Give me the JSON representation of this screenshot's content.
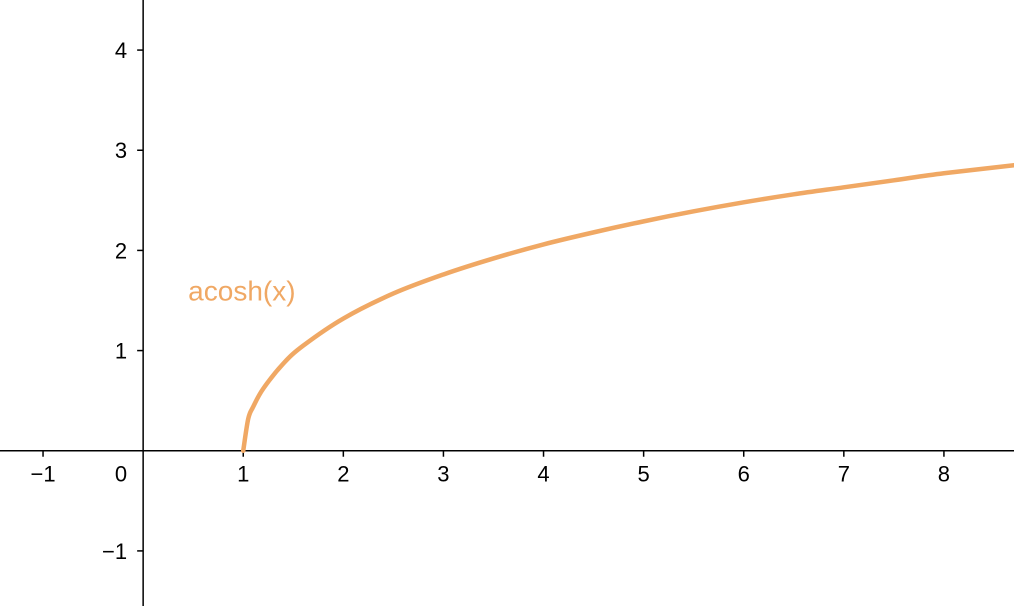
{
  "chart_data": {
    "type": "line",
    "title": "",
    "xlabel": "",
    "ylabel": "",
    "xlim": [
      -1.43,
      8.7
    ],
    "ylim": [
      -1.55,
      4.5
    ],
    "grid": false,
    "x_ticks": [
      {
        "value": -1,
        "label": "−1"
      },
      {
        "value": 1,
        "label": "1"
      },
      {
        "value": 2,
        "label": "2"
      },
      {
        "value": 3,
        "label": "3"
      },
      {
        "value": 4,
        "label": "4"
      },
      {
        "value": 5,
        "label": "5"
      },
      {
        "value": 6,
        "label": "6"
      },
      {
        "value": 7,
        "label": "7"
      },
      {
        "value": 8,
        "label": "8"
      }
    ],
    "y_ticks": [
      {
        "value": -1,
        "label": "−1"
      },
      {
        "value": 1,
        "label": "1"
      },
      {
        "value": 2,
        "label": "2"
      },
      {
        "value": 3,
        "label": "3"
      },
      {
        "value": 4,
        "label": "4"
      }
    ],
    "origin_label": "0",
    "series": [
      {
        "name": "acosh(x)",
        "color": "#f0a864",
        "x": [
          1.0,
          1.05,
          1.1,
          1.2,
          1.4,
          1.6,
          2.0,
          2.5,
          3.0,
          3.5,
          4.0,
          4.5,
          5.0,
          5.5,
          6.0,
          6.5,
          7.0,
          7.5,
          8.0,
          8.7
        ],
        "y": [
          0.0,
          0.32,
          0.44,
          0.62,
          0.87,
          1.05,
          1.32,
          1.57,
          1.76,
          1.92,
          2.06,
          2.18,
          2.29,
          2.39,
          2.48,
          2.56,
          2.63,
          2.7,
          2.77,
          2.85
        ]
      }
    ]
  }
}
